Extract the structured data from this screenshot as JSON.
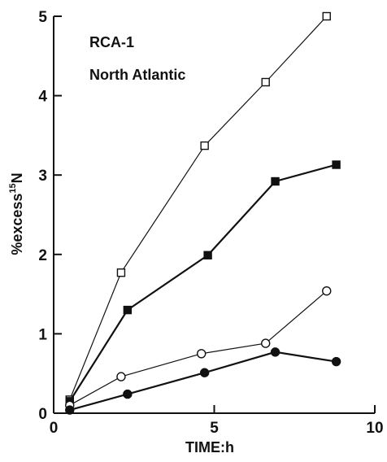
{
  "chart_data": {
    "type": "line",
    "title": "",
    "xlabel": "TIME:h",
    "ylabel_prefix": "%excess",
    "ylabel_sup": "15",
    "ylabel_suffix": "N",
    "xlim": [
      0,
      10
    ],
    "ylim": [
      0,
      5
    ],
    "xticks": [
      0,
      5,
      10
    ],
    "yticks": [
      0,
      1,
      2,
      3,
      4,
      5
    ],
    "annotations": [
      "RCA-1",
      "North Atlantic"
    ],
    "grid": false,
    "legend": "none",
    "series": [
      {
        "marker": "open-square",
        "color": "#111111",
        "x": [
          0.5,
          2.1,
          4.7,
          6.6,
          8.5
        ],
        "y": [
          0.17,
          1.77,
          3.37,
          4.17,
          5.0
        ]
      },
      {
        "marker": "filled-square",
        "color": "#111111",
        "x": [
          0.5,
          2.3,
          4.8,
          6.9,
          8.8
        ],
        "y": [
          0.15,
          1.3,
          1.99,
          2.92,
          3.13
        ]
      },
      {
        "marker": "open-circle",
        "color": "#111111",
        "x": [
          0.5,
          2.1,
          4.6,
          6.6,
          8.5
        ],
        "y": [
          0.1,
          0.46,
          0.75,
          0.88,
          1.54
        ]
      },
      {
        "marker": "filled-circle",
        "color": "#111111",
        "x": [
          0.5,
          2.3,
          4.7,
          6.9,
          8.8
        ],
        "y": [
          0.04,
          0.24,
          0.51,
          0.77,
          0.65
        ]
      }
    ]
  }
}
